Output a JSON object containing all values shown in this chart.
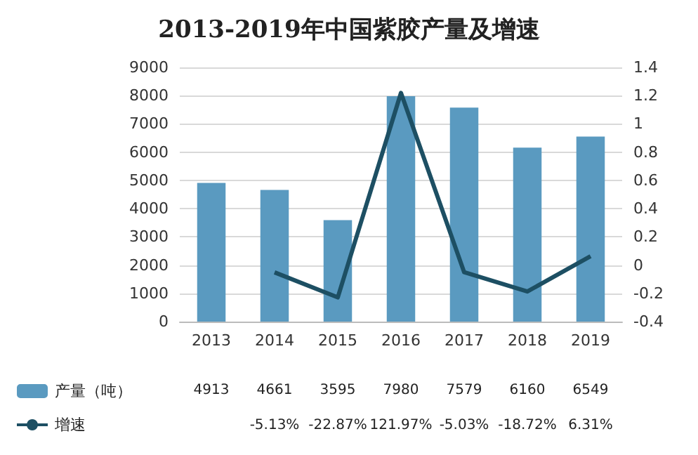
{
  "chart_data": {
    "type": "bar",
    "title": "2013-2019年中国紫胶产量及增速",
    "categories": [
      "2013",
      "2014",
      "2015",
      "2016",
      "2017",
      "2018",
      "2019"
    ],
    "series": [
      {
        "name": "产量（吨）",
        "color": "#5a9ac0",
        "values": [
          4913,
          4661,
          3595,
          7980,
          7579,
          6160,
          6549
        ],
        "value_labels": [
          "4913",
          "4661",
          "3595",
          "7980",
          "7579",
          "6160",
          "6549"
        ]
      },
      {
        "name": "增速",
        "type": "line",
        "axis": "y2",
        "color": "#1d4f63",
        "values": [
          null,
          -0.0513,
          -0.2287,
          1.2197,
          -0.0503,
          -0.1872,
          0.0631
        ],
        "value_labels": [
          null,
          "-5.13%",
          "-22.87%",
          "121.97%",
          "-5.03%",
          "-18.72%",
          "6.31%"
        ]
      }
    ],
    "ylim": [
      0,
      9000
    ],
    "yticks": [
      0,
      1000,
      2000,
      3000,
      4000,
      5000,
      6000,
      7000,
      8000,
      9000
    ],
    "y2lim": [
      -0.4,
      1.4
    ],
    "y2ticks": [
      -0.4,
      -0.2,
      0,
      0.2,
      0.4,
      0.6,
      0.8,
      1,
      1.2,
      1.4
    ],
    "grid": "y",
    "legend": "bottom left",
    "marker": "none",
    "line_style": "solid"
  }
}
